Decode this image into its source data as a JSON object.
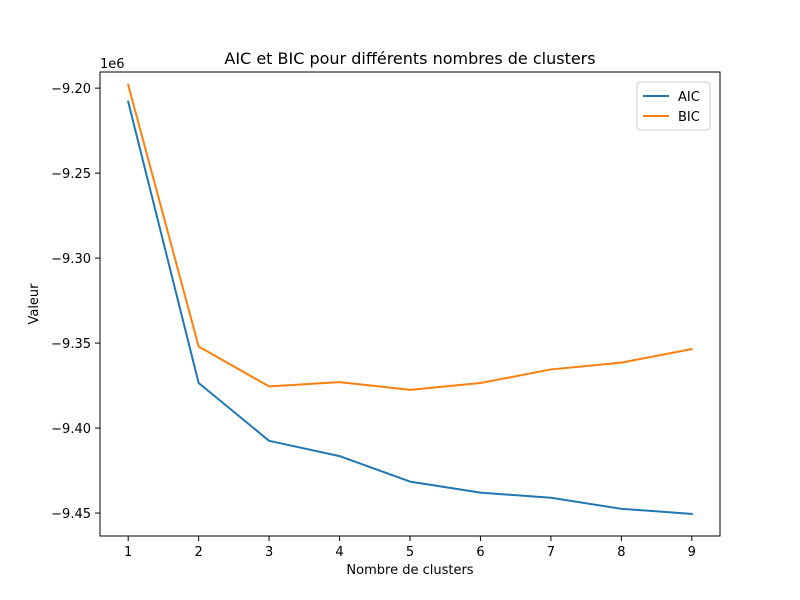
{
  "chart_data": {
    "type": "line",
    "title": "AIC et BIC pour différents nombres de clusters",
    "xlabel": "Nombre de clusters",
    "ylabel": "Valeur",
    "y_offset_label": "1e6",
    "x": [
      1,
      2,
      3,
      4,
      5,
      6,
      7,
      8,
      9
    ],
    "x_ticks": [
      "1",
      "2",
      "3",
      "4",
      "5",
      "6",
      "7",
      "8",
      "9"
    ],
    "y_ticks": [
      -9.2,
      -9.25,
      -9.3,
      -9.35,
      -9.4,
      -9.45
    ],
    "y_tick_labels": [
      "−9.20",
      "−9.25",
      "−9.30",
      "−9.35",
      "−9.40",
      "−9.45"
    ],
    "xlim": [
      0.6,
      9.4
    ],
    "ylim": [
      -9.4635,
      -9.1905
    ],
    "legend_position": "top-right",
    "grid": false,
    "series": [
      {
        "name": "AIC",
        "color": "#1f77b4",
        "values": [
          -9.208,
          -9.3735,
          -9.4075,
          -9.4165,
          -9.4315,
          -9.438,
          -9.441,
          -9.4475,
          -9.4505
        ]
      },
      {
        "name": "BIC",
        "color": "#ff7f0e",
        "values": [
          -9.198,
          -9.352,
          -9.3755,
          -9.373,
          -9.3775,
          -9.3735,
          -9.3655,
          -9.3615,
          -9.3535
        ]
      }
    ]
  }
}
